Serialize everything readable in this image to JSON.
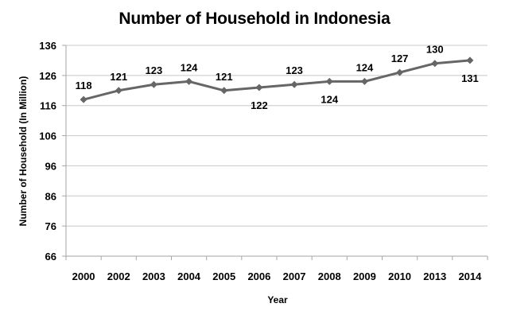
{
  "chart_data": {
    "type": "line",
    "title": "Number of Household in Indonesia",
    "xlabel": "Year",
    "ylabel": "Number of Household (In Million)",
    "categories": [
      "2000",
      "2002",
      "2003",
      "2004",
      "2005",
      "2006",
      "2007",
      "2008",
      "2009",
      "2010",
      "2013",
      "2014"
    ],
    "series": [
      {
        "name": "Number of Household",
        "values": [
          118,
          121,
          123,
          124,
          121,
          122,
          123,
          124,
          124,
          127,
          130,
          131
        ],
        "color": "#666666",
        "marker": "diamond"
      }
    ],
    "label_positions": [
      "above",
      "above",
      "above",
      "above",
      "above",
      "below",
      "above",
      "below",
      "above",
      "above",
      "above",
      "below"
    ],
    "ylim": [
      66,
      136
    ],
    "yticks": [
      66,
      76,
      86,
      96,
      106,
      116,
      126,
      136
    ],
    "grid": true,
    "legend": false
  },
  "colors": {
    "line": "#666666",
    "grid": "#c8c8c8",
    "axis": "#a6a6a6"
  }
}
